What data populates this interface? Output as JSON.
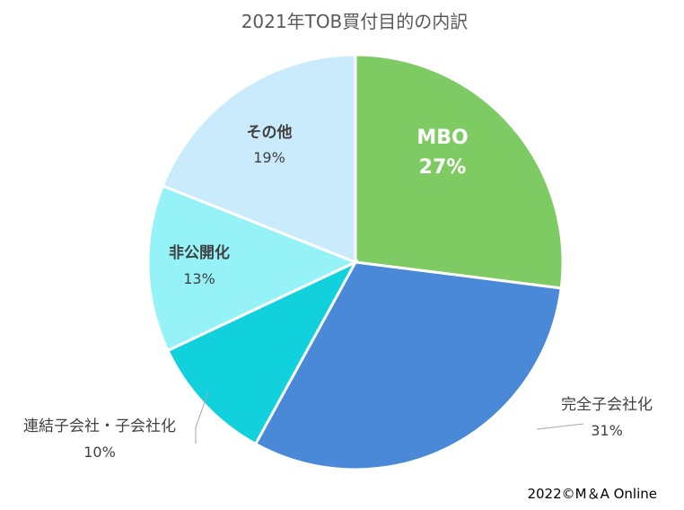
{
  "chart_data": {
    "type": "pie",
    "title": "2021年TOB買付目的の内訳",
    "slices": [
      {
        "label": "MBO",
        "value_label": "27%",
        "value": 27,
        "color": "#7dcb62"
      },
      {
        "label": "完全子会社化",
        "value_label": "31%",
        "value": 31,
        "color": "#4a89d8"
      },
      {
        "label": "連結子会社・子会社化",
        "value_label": "10%",
        "value": 10,
        "color": "#10d1dc"
      },
      {
        "label": "非公開化",
        "value_label": "13%",
        "value": 13,
        "color": "#95f3f8"
      },
      {
        "label": "その他",
        "value_label": "19%",
        "value": 19,
        "color": "#c9ebfb"
      }
    ]
  },
  "footer": {
    "copyright": "2022©M＆A Online"
  }
}
